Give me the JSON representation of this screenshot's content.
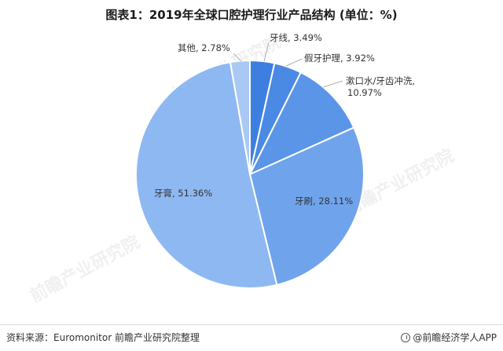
{
  "title": "图表1：2019年全球口腔护理行业产品结构 (单位：%)",
  "source": "资料来源：Euromonitor 前瞻产业研究院整理",
  "brand": "@前瞻经济学人APP",
  "watermark": "前瞻产业研究院",
  "chart_data": {
    "type": "pie",
    "title": "图表1：2019年全球口腔护理行业产品结构 (单位：%)",
    "unit": "%",
    "slices": [
      {
        "name": "牙线",
        "value": 3.49,
        "label": "牙线, 3.49%",
        "color": "#3d7fe0"
      },
      {
        "name": "假牙护理",
        "value": 3.92,
        "label": "假牙护理, 3.92%",
        "color": "#4a89e4"
      },
      {
        "name": "漱口水/牙齿冲洗",
        "value": 10.97,
        "label": "漱口水/牙齿冲洗, 10.97%",
        "label_line1": "漱口水/牙齿冲洗,",
        "label_line2": "10.97%",
        "color": "#5a95e8"
      },
      {
        "name": "牙刷",
        "value": 28.11,
        "label": "牙刷, 28.11%",
        "color": "#6fa4ed"
      },
      {
        "name": "牙膏",
        "value": 51.36,
        "label": "牙膏, 51.36%",
        "color": "#8eb8f1"
      },
      {
        "name": "其他",
        "value": 2.78,
        "label": "其他, 2.78%",
        "color": "#a9c9f4"
      }
    ]
  }
}
